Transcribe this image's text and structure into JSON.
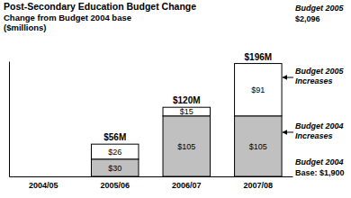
{
  "chart_data": {
    "type": "bar",
    "title": "Post-Secondary Education Budget Change",
    "subtitle": "Change from Budget 2004 base",
    "ylabel": "($millions)",
    "categories": [
      "2004/05",
      "2005/06",
      "2006/07",
      "2007/08"
    ],
    "series": [
      {
        "name": "Budget 2004 Increases",
        "color": "#c0c0c0",
        "values": [
          null,
          30,
          105,
          105
        ],
        "value_labels": [
          null,
          "$30",
          "$105",
          "$105"
        ]
      },
      {
        "name": "Budget 2005 Increases",
        "color": "#ffffff",
        "values": [
          null,
          26,
          15,
          91
        ],
        "value_labels": [
          null,
          "$26",
          "$15",
          "$91"
        ]
      }
    ],
    "totals": [
      null,
      56,
      120,
      196
    ],
    "total_labels": [
      null,
      "$56M",
      "$120M",
      "$196M"
    ],
    "annotations": [
      {
        "lines": [
          "Budget 2005",
          "$2,096"
        ]
      },
      {
        "lines": [
          "Budget 2004",
          "Base: $1,900"
        ]
      }
    ],
    "ylim": [
      0,
      200
    ],
    "yticks": [],
    "stacked": true,
    "data_labels": true,
    "tick_labels": "x",
    "grid": false
  }
}
